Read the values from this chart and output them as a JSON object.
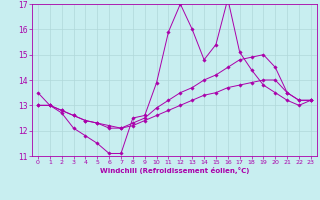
{
  "xlabel": "Windchill (Refroidissement éolien,°C)",
  "background_color": "#c8eef0",
  "grid_color": "#b0d8da",
  "line_color": "#aa00aa",
  "xlim": [
    -0.5,
    23.5
  ],
  "ylim": [
    11,
    17
  ],
  "yticks": [
    11,
    12,
    13,
    14,
    15,
    16,
    17
  ],
  "xticks": [
    0,
    1,
    2,
    3,
    4,
    5,
    6,
    7,
    8,
    9,
    10,
    11,
    12,
    13,
    14,
    15,
    16,
    17,
    18,
    19,
    20,
    21,
    22,
    23
  ],
  "series": [
    {
      "x": [
        0,
        1,
        2,
        3,
        4,
        5,
        6,
        7,
        8,
        9,
        10,
        11,
        12,
        13,
        14,
        15,
        16,
        17,
        18,
        19,
        20,
        21,
        22,
        23
      ],
      "y": [
        13.5,
        13.0,
        12.7,
        12.1,
        11.8,
        11.5,
        11.1,
        11.1,
        12.5,
        12.6,
        13.9,
        15.9,
        17.0,
        16.0,
        14.8,
        15.4,
        17.2,
        15.1,
        14.4,
        13.8,
        13.5,
        13.2,
        13.0,
        13.2
      ]
    },
    {
      "x": [
        0,
        1,
        2,
        3,
        4,
        5,
        6,
        7,
        8,
        9,
        10,
        11,
        12,
        13,
        14,
        15,
        16,
        17,
        18,
        19,
        20,
        21,
        22,
        23
      ],
      "y": [
        13.0,
        13.0,
        12.8,
        12.6,
        12.4,
        12.3,
        12.2,
        12.1,
        12.3,
        12.5,
        12.9,
        13.2,
        13.5,
        13.7,
        14.0,
        14.2,
        14.5,
        14.8,
        14.9,
        15.0,
        14.5,
        13.5,
        13.2,
        13.2
      ]
    },
    {
      "x": [
        0,
        1,
        2,
        3,
        4,
        5,
        6,
        7,
        8,
        9,
        10,
        11,
        12,
        13,
        14,
        15,
        16,
        17,
        18,
        19,
        20,
        21,
        22,
        23
      ],
      "y": [
        13.0,
        13.0,
        12.8,
        12.6,
        12.4,
        12.3,
        12.1,
        12.1,
        12.2,
        12.4,
        12.6,
        12.8,
        13.0,
        13.2,
        13.4,
        13.5,
        13.7,
        13.8,
        13.9,
        14.0,
        14.0,
        13.5,
        13.2,
        13.2
      ]
    }
  ]
}
